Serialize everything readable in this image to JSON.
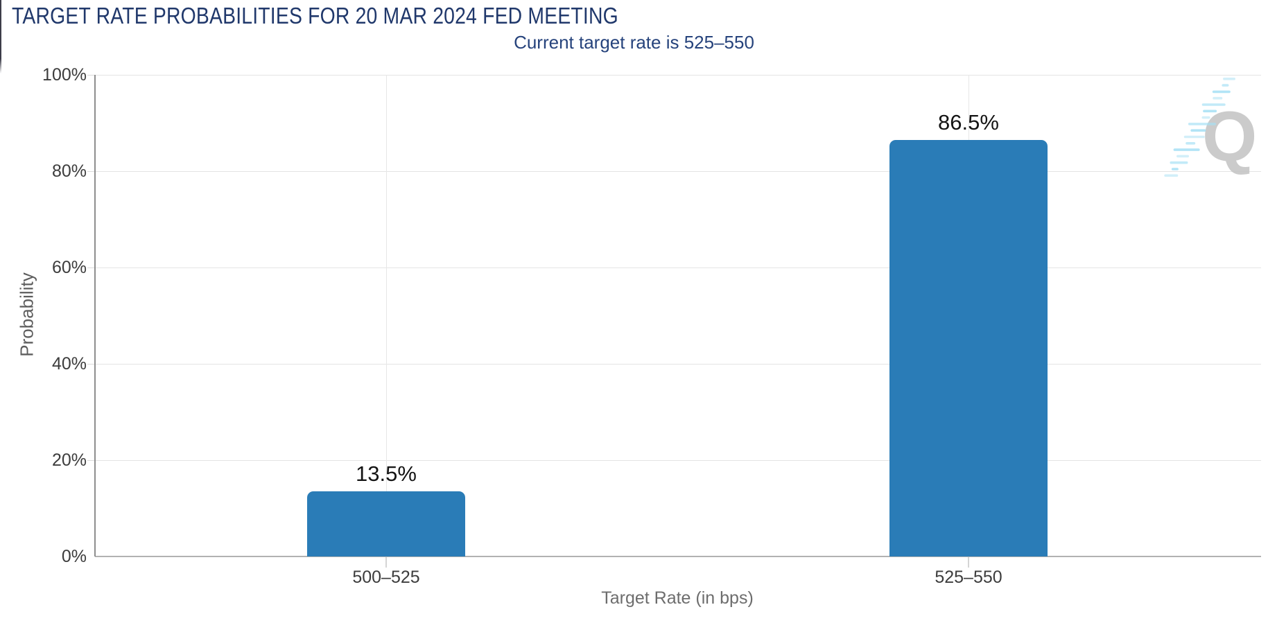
{
  "header": {
    "title": "TARGET RATE PROBABILITIES FOR 20 MAR 2024 FED MEETING",
    "subtitle": "Current target rate is 525–550"
  },
  "watermark": {
    "letter": "Q"
  },
  "chart_data": {
    "type": "bar",
    "title": "TARGET RATE PROBABILITIES FOR 20 MAR 2024 FED MEETING",
    "subtitle": "Current target rate is 525–550",
    "xlabel": "Target Rate (in bps)",
    "ylabel": "Probability",
    "categories": [
      "500–525",
      "525–550"
    ],
    "values": [
      13.5,
      86.5
    ],
    "value_labels": [
      "13.5%",
      "86.5%"
    ],
    "ylim": [
      0,
      100
    ],
    "ytick_values": [
      0,
      20,
      40,
      60,
      80,
      100
    ],
    "ytick_labels": [
      "0%",
      "20%",
      "40%",
      "60%",
      "80%",
      "100%"
    ],
    "grid": true,
    "legend": "none",
    "bar_color": "#2a7cb7"
  },
  "colors": {
    "title_navy": "#20386b",
    "subtitle_navy": "#26437c",
    "bar_blue": "#2a7cb7",
    "tick_label": "#3c3c3c",
    "axis_title": "#6d6d6d",
    "gridline": "#e4e4e4",
    "axis_line": "#8d8d8d",
    "baseline": "#b2b2b2",
    "watermark_gray": "#c6c6c6",
    "watermark_cyan": "#a5e0f4"
  }
}
